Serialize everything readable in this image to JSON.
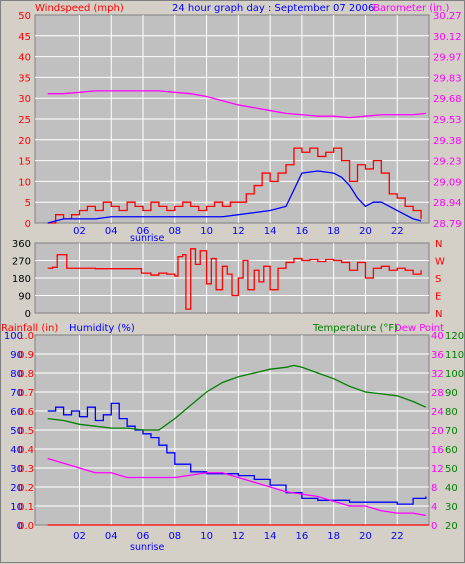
{
  "header": {
    "windspeed_label": "Windspeed (mph)",
    "title": "24 hour graph day : September 07 2006",
    "barometer_label": "Barometer (in.)"
  },
  "middle": {
    "left_ticks": [
      "360",
      "270",
      "180",
      "90",
      "0"
    ],
    "right_ticks": [
      "N",
      "W",
      "S",
      "E",
      "N"
    ]
  },
  "bottom_header": {
    "rainfall_label": "Rainfall (in)",
    "humidity_label": "Humidity (%)",
    "temperature_label": "Temperature (°F)",
    "dewpoint_label": "Dew Point"
  },
  "x_axis": {
    "tick_labels": [
      "02",
      "04",
      "06",
      "08",
      "10",
      "12",
      "14",
      "16",
      "18",
      "20",
      "22"
    ],
    "sunrise_label": "sunrise"
  },
  "colors": {
    "windspeed": "#ff0000",
    "wind_avg": "#0000ff",
    "barometer": "#ff00ff",
    "direction": "#ff0000",
    "rainfall": "#ff0000",
    "humidity": "#0000ff",
    "temperature": "#008000",
    "dewpoint": "#ff00ff",
    "grid": "#ffffff",
    "panel": "#c0c0c0"
  },
  "chart_data": [
    {
      "type": "line",
      "name": "wind-barometer",
      "x_unit": "hour",
      "ylim_left": [
        0,
        50
      ],
      "left_ticks": [
        0,
        5,
        10,
        15,
        20,
        25,
        30,
        35,
        40,
        45,
        50
      ],
      "right_ticks": [
        "28.79",
        "28.94",
        "29.09",
        "29.23",
        "29.38",
        "29.53",
        "29.68",
        "29.83",
        "29.97",
        "30.12",
        "30.27"
      ],
      "ylim_right": [
        28.79,
        30.27
      ],
      "series": [
        {
          "name": "Windspeed (mph)",
          "axis": "left",
          "x": [
            0,
            0.5,
            1,
            1.5,
            2,
            2.5,
            3,
            3.5,
            4,
            4.5,
            5,
            5.5,
            6,
            6.5,
            7,
            7.5,
            8,
            8.5,
            9,
            9.5,
            10,
            10.5,
            11,
            11.5,
            12,
            12.5,
            13,
            13.5,
            14,
            14.5,
            15,
            15.5,
            16,
            16.5,
            17,
            17.5,
            18,
            18.5,
            19,
            19.5,
            20,
            20.5,
            21,
            21.5,
            22,
            22.5,
            23,
            23.5
          ],
          "values": [
            0,
            2,
            1,
            2,
            3,
            4,
            3,
            5,
            4,
            3,
            5,
            4,
            3,
            5,
            4,
            3,
            4,
            5,
            4,
            3,
            4,
            5,
            4,
            5,
            5,
            7,
            9,
            12,
            10,
            12,
            14,
            18,
            17,
            18,
            16,
            17,
            18,
            15,
            10,
            14,
            13,
            15,
            12,
            7,
            6,
            4,
            3,
            1
          ]
        },
        {
          "name": "Wind average",
          "axis": "left",
          "x": [
            0,
            1,
            2,
            3,
            4,
            5,
            6,
            7,
            8,
            9,
            10,
            11,
            12,
            13,
            14,
            15,
            15.5,
            16,
            17,
            18,
            18.5,
            19,
            19.5,
            20,
            20.5,
            21,
            21.5,
            22,
            22.5,
            23,
            23.5
          ],
          "values": [
            0,
            1,
            1,
            1,
            1.5,
            1.5,
            1.5,
            1.5,
            1.5,
            1.5,
            1.5,
            1.5,
            2,
            2.5,
            3,
            4,
            8,
            12,
            12.5,
            12,
            11,
            9,
            6,
            4,
            5,
            5,
            4,
            3,
            2,
            1,
            0.5
          ]
        },
        {
          "name": "Barometer (in.)",
          "axis": "right",
          "x": [
            0,
            1,
            2,
            3,
            4,
            5,
            6,
            7,
            8,
            9,
            10,
            11,
            12,
            13,
            14,
            15,
            16,
            17,
            18,
            19,
            20,
            21,
            22,
            23,
            23.8
          ],
          "values": [
            29.71,
            29.71,
            29.72,
            29.73,
            29.73,
            29.73,
            29.73,
            29.73,
            29.72,
            29.71,
            29.69,
            29.66,
            29.63,
            29.61,
            29.59,
            29.57,
            29.56,
            29.55,
            29.55,
            29.54,
            29.55,
            29.56,
            29.56,
            29.56,
            29.57
          ]
        }
      ]
    },
    {
      "type": "scatter",
      "name": "wind-direction",
      "x_unit": "hour",
      "ylim": [
        0,
        360
      ],
      "series": [
        {
          "name": "Direction",
          "x": [
            0,
            0.3,
            0.6,
            0.9,
            1.2,
            2,
            3,
            4,
            5,
            5.9,
            6.5,
            7,
            7.5,
            8,
            8.2,
            8.5,
            8.7,
            9,
            9.3,
            9.6,
            10,
            10.3,
            10.6,
            11,
            11.3,
            11.6,
            12,
            12.3,
            12.6,
            13,
            13.3,
            13.6,
            14,
            14.5,
            15,
            15.5,
            16,
            16.5,
            17,
            17.5,
            18,
            18.5,
            19,
            19.5,
            20,
            20.5,
            21,
            21.5,
            22,
            22.5,
            23,
            23.5
          ],
          "values": [
            230,
            235,
            300,
            300,
            230,
            230,
            228,
            228,
            228,
            205,
            195,
            205,
            200,
            190,
            290,
            300,
            20,
            330,
            250,
            320,
            150,
            280,
            120,
            240,
            200,
            90,
            180,
            270,
            120,
            220,
            160,
            240,
            120,
            230,
            260,
            280,
            270,
            275,
            265,
            275,
            270,
            260,
            220,
            260,
            180,
            230,
            240,
            220,
            230,
            220,
            200,
            220
          ]
        }
      ]
    },
    {
      "type": "line",
      "name": "rain-humidity-temperature",
      "x_unit": "hour",
      "ylim_humidity": [
        0,
        100
      ],
      "ylim_rainfall": [
        0,
        1.0
      ],
      "ylim_temperature": [
        20,
        120
      ],
      "ylim_dewpoint": [
        0,
        40
      ],
      "humidity_ticks": [
        0,
        10,
        20,
        30,
        40,
        50,
        60,
        70,
        80,
        90,
        100
      ],
      "rainfall_ticks": [
        "0.0",
        "0.1",
        "0.2",
        "0.3",
        "0.4",
        "0.5",
        "0.6",
        "0.7",
        "0.8",
        "0.9",
        "1.0"
      ],
      "temperature_ticks": [
        20,
        30,
        40,
        50,
        60,
        70,
        80,
        90,
        100,
        110,
        120
      ],
      "dewpoint_ticks": [
        0,
        4,
        8,
        12,
        16,
        20,
        24,
        28,
        32,
        36,
        40
      ],
      "series": [
        {
          "name": "Humidity (%)",
          "axis": "humidity",
          "x": [
            0,
            0.5,
            1,
            1.5,
            2,
            2.5,
            3,
            3.5,
            4,
            4.5,
            5,
            5.5,
            6,
            6.5,
            7,
            7.5,
            8,
            9,
            10,
            11,
            12,
            13,
            14,
            15,
            16,
            17,
            18,
            19,
            20,
            21,
            22,
            23,
            23.8
          ],
          "values": [
            60,
            62,
            58,
            60,
            57,
            62,
            55,
            58,
            64,
            56,
            52,
            50,
            48,
            46,
            42,
            38,
            32,
            28,
            27,
            27,
            26,
            24,
            21,
            17,
            14,
            13,
            13,
            12,
            12,
            12,
            11,
            14,
            15
          ]
        },
        {
          "name": "Temperature (°F)",
          "axis": "temperature",
          "x": [
            0,
            1,
            2,
            3,
            4,
            5,
            6,
            7,
            8,
            9,
            10,
            11,
            12,
            13,
            14,
            15,
            15.5,
            16,
            17,
            18,
            19,
            20,
            21,
            22,
            23,
            23.8
          ],
          "values": [
            76,
            75,
            73,
            72,
            71,
            71,
            70,
            70,
            76,
            83,
            90,
            95,
            98,
            100,
            102,
            103,
            104,
            103,
            100,
            97,
            93,
            90,
            89,
            88,
            85,
            82
          ]
        },
        {
          "name": "Dew Point",
          "axis": "dewpoint",
          "x": [
            0,
            1,
            2,
            3,
            4,
            5,
            6,
            7,
            8,
            9,
            10,
            11,
            12,
            13,
            14,
            15,
            16,
            17,
            18,
            19,
            20,
            21,
            22,
            23,
            23.8
          ],
          "values": [
            14,
            13,
            12,
            11,
            11,
            10,
            10,
            10,
            10,
            10.5,
            11,
            11,
            10,
            9,
            8,
            7,
            6.5,
            6,
            5,
            4,
            4,
            3,
            2.5,
            2.5,
            2
          ]
        },
        {
          "name": "Rainfall (in)",
          "axis": "rainfall",
          "x": [
            0,
            24
          ],
          "values": [
            0,
            0
          ]
        }
      ]
    }
  ]
}
